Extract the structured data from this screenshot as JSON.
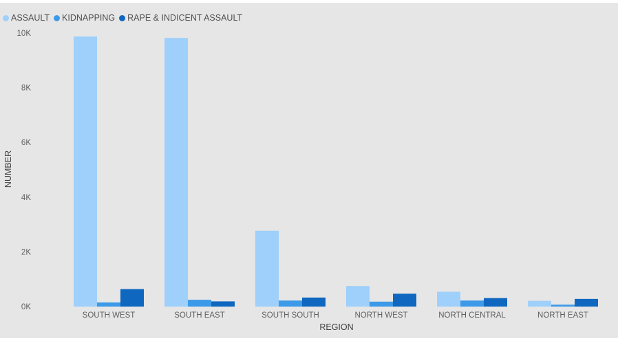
{
  "chart_data": {
    "type": "bar",
    "title": "",
    "xlabel": "REGION",
    "ylabel": "NUMBER",
    "categories": [
      "SOUTH WEST",
      "SOUTH EAST",
      "SOUTH SOUTH",
      "NORTH WEST",
      "NORTH CENTRAL",
      "NORTH EAST"
    ],
    "series": [
      {
        "name": "ASSAULT",
        "color": "#9ed0fb",
        "values": [
          9870,
          9820,
          2770,
          750,
          540,
          210
        ]
      },
      {
        "name": "KIDNAPPING",
        "color": "#3d9ae8",
        "values": [
          150,
          250,
          220,
          180,
          220,
          70
        ]
      },
      {
        "name": "RAPE & INDICENT ASSAULT",
        "color": "#0f67c0",
        "values": [
          640,
          190,
          330,
          470,
          310,
          280
        ]
      }
    ],
    "ylim": [
      0,
      10000
    ],
    "yticks": [
      0,
      2000,
      4000,
      6000,
      8000,
      10000
    ],
    "ytick_labels": [
      "0K",
      "2K",
      "4K",
      "6K",
      "8K",
      "10K"
    ],
    "legend_position": "top-left",
    "grid": false
  }
}
